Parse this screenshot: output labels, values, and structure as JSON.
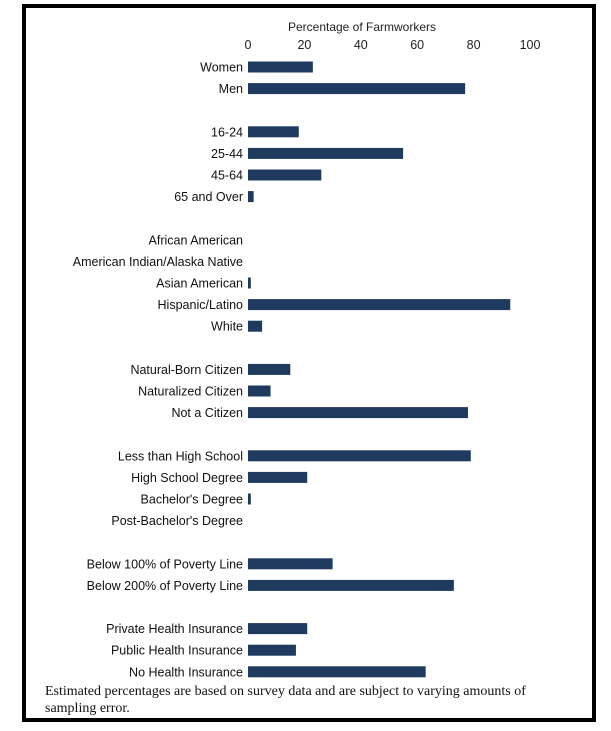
{
  "chart_data": {
    "type": "bar",
    "orientation": "horizontal",
    "xlabel": "Percentage of Farmworkers",
    "xlim": [
      0,
      100
    ],
    "xticks": [
      0,
      20,
      40,
      60,
      80,
      100
    ],
    "grid": false,
    "bar_color": "#1f3a5f",
    "categories": [
      "Women",
      "Men",
      "16-24",
      "25-44",
      "45-64",
      "65 and Over",
      "African American",
      "American Indian/Alaska Native",
      "Asian American",
      "Hispanic/Latino",
      "White",
      "Natural-Born Citizen",
      "Naturalized Citizen",
      "Not a Citizen",
      "Less than High School",
      "High School Degree",
      "Bachelor's Degree",
      "Post-Bachelor's Degree",
      "Below 100% of Poverty Line",
      "Below 200% of Poverty Line",
      "Private Health Insurance",
      "Public  Health Insurance",
      "No Health Insurance"
    ],
    "groups": [
      2,
      4,
      5,
      3,
      4,
      2,
      3
    ],
    "values": [
      23,
      77,
      18,
      55,
      26,
      2,
      0,
      0,
      1,
      93,
      5,
      15,
      8,
      78,
      79,
      21,
      1,
      0,
      30,
      73,
      21,
      17,
      63
    ]
  },
  "note": "Estimated percentages are based on survey data and are subject to varying amounts of sampling error."
}
